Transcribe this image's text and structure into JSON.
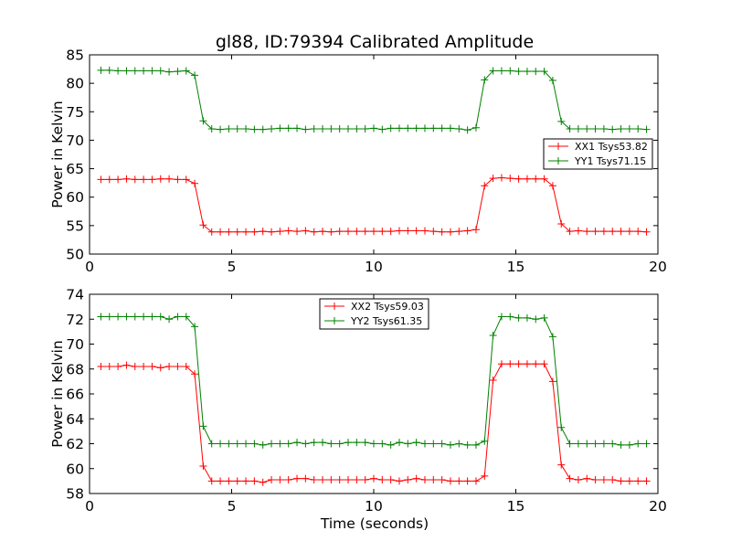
{
  "chart_data": {
    "title": "gl88, ID:79394 Calibrated Amplitude",
    "xlabel": "Time (seconds)",
    "panels": [
      {
        "type": "line",
        "ylabel": "Power in Kelvin",
        "xlim": [
          0,
          20
        ],
        "ylim": [
          50,
          85
        ],
        "xticks": [
          0,
          5,
          10,
          15,
          20
        ],
        "yticks": [
          50,
          55,
          60,
          65,
          70,
          75,
          80,
          85
        ],
        "legend_position": "center-right",
        "x": [
          0.4,
          0.7,
          1.0,
          1.3,
          1.6,
          1.9,
          2.2,
          2.5,
          2.8,
          3.1,
          3.4,
          3.7,
          4.0,
          4.3,
          4.6,
          4.9,
          5.2,
          5.5,
          5.8,
          6.1,
          6.4,
          6.7,
          7.0,
          7.3,
          7.6,
          7.9,
          8.2,
          8.5,
          8.8,
          9.1,
          9.4,
          9.7,
          10.0,
          10.3,
          10.6,
          10.9,
          11.2,
          11.5,
          11.8,
          12.1,
          12.4,
          12.7,
          13.0,
          13.3,
          13.6,
          13.9,
          14.2,
          14.5,
          14.8,
          15.1,
          15.4,
          15.7,
          16.0,
          16.3,
          16.6,
          16.9,
          17.2,
          17.5,
          17.8,
          18.1,
          18.4,
          18.7,
          19.0,
          19.3,
          19.6
        ],
        "series": [
          {
            "name": "XX1 Tsys53.82",
            "color": "#ff0000",
            "values": [
              63.1,
              63.1,
              63.1,
              63.2,
              63.1,
              63.1,
              63.1,
              63.2,
              63.2,
              63.1,
              63.1,
              62.4,
              55.1,
              53.9,
              53.9,
              53.9,
              53.9,
              53.9,
              53.9,
              54.0,
              53.9,
              54.0,
              54.1,
              54.0,
              54.1,
              53.9,
              54.0,
              53.9,
              54.0,
              54.0,
              54.0,
              54.0,
              54.0,
              54.0,
              54.0,
              54.1,
              54.1,
              54.1,
              54.1,
              54.0,
              53.9,
              53.9,
              54.0,
              54.1,
              54.3,
              62.0,
              63.3,
              63.4,
              63.3,
              63.2,
              63.2,
              63.2,
              63.2,
              62.0,
              55.3,
              54.0,
              54.1,
              54.0,
              54.0,
              54.0,
              54.0,
              54.0,
              54.0,
              54.0,
              53.9
            ]
          },
          {
            "name": "YY1 Tsys71.15",
            "color": "#008000",
            "values": [
              82.3,
              82.3,
              82.2,
              82.2,
              82.2,
              82.2,
              82.2,
              82.2,
              82.0,
              82.1,
              82.2,
              81.4,
              73.4,
              72.0,
              71.9,
              72.0,
              72.0,
              72.0,
              71.9,
              71.9,
              72.0,
              72.1,
              72.1,
              72.1,
              71.9,
              72.0,
              72.0,
              72.0,
              72.0,
              72.0,
              72.0,
              72.0,
              72.1,
              71.9,
              72.1,
              72.1,
              72.1,
              72.1,
              72.1,
              72.1,
              72.1,
              72.1,
              72.0,
              71.8,
              72.2,
              80.6,
              82.2,
              82.2,
              82.2,
              82.1,
              82.1,
              82.1,
              82.1,
              80.5,
              73.3,
              72.0,
              72.0,
              72.0,
              72.0,
              72.0,
              71.9,
              72.0,
              72.0,
              72.0,
              71.9
            ]
          }
        ]
      },
      {
        "type": "line",
        "ylabel": "Power in Kelvin",
        "xlim": [
          0,
          20
        ],
        "ylim": [
          58,
          74
        ],
        "xticks": [
          0,
          5,
          10,
          15,
          20
        ],
        "yticks": [
          58,
          60,
          62,
          64,
          66,
          68,
          70,
          72,
          74
        ],
        "legend_position": "upper-center",
        "x": [
          0.4,
          0.7,
          1.0,
          1.3,
          1.6,
          1.9,
          2.2,
          2.5,
          2.8,
          3.1,
          3.4,
          3.7,
          4.0,
          4.3,
          4.6,
          4.9,
          5.2,
          5.5,
          5.8,
          6.1,
          6.4,
          6.7,
          7.0,
          7.3,
          7.6,
          7.9,
          8.2,
          8.5,
          8.8,
          9.1,
          9.4,
          9.7,
          10.0,
          10.3,
          10.6,
          10.9,
          11.2,
          11.5,
          11.8,
          12.1,
          12.4,
          12.7,
          13.0,
          13.3,
          13.6,
          13.9,
          14.2,
          14.5,
          14.8,
          15.1,
          15.4,
          15.7,
          16.0,
          16.3,
          16.6,
          16.9,
          17.2,
          17.5,
          17.8,
          18.1,
          18.4,
          18.7,
          19.0,
          19.3,
          19.6
        ],
        "series": [
          {
            "name": "XX2 Tsys59.03",
            "color": "#ff0000",
            "values": [
              68.2,
              68.2,
              68.2,
              68.3,
              68.2,
              68.2,
              68.2,
              68.1,
              68.2,
              68.2,
              68.2,
              67.6,
              60.2,
              59.0,
              59.0,
              59.0,
              59.0,
              59.0,
              59.0,
              58.9,
              59.1,
              59.1,
              59.1,
              59.2,
              59.2,
              59.1,
              59.1,
              59.1,
              59.1,
              59.1,
              59.1,
              59.1,
              59.2,
              59.1,
              59.1,
              59.0,
              59.1,
              59.2,
              59.1,
              59.1,
              59.1,
              59.0,
              59.0,
              59.0,
              59.0,
              59.4,
              67.1,
              68.4,
              68.4,
              68.4,
              68.4,
              68.4,
              68.4,
              67.0,
              60.3,
              59.2,
              59.1,
              59.2,
              59.1,
              59.1,
              59.1,
              59.0,
              59.0,
              59.0,
              59.0
            ]
          },
          {
            "name": "YY2 Tsys61.35",
            "color": "#008000",
            "values": [
              72.2,
              72.2,
              72.2,
              72.2,
              72.2,
              72.2,
              72.2,
              72.2,
              72.0,
              72.2,
              72.2,
              71.4,
              63.4,
              62.0,
              62.0,
              62.0,
              62.0,
              62.0,
              62.0,
              61.9,
              62.0,
              62.0,
              62.0,
              62.1,
              62.0,
              62.1,
              62.1,
              62.0,
              62.0,
              62.1,
              62.1,
              62.1,
              62.0,
              62.0,
              61.9,
              62.1,
              62.0,
              62.1,
              62.0,
              62.0,
              62.0,
              61.9,
              62.0,
              61.9,
              61.9,
              62.2,
              70.7,
              72.2,
              72.2,
              72.1,
              72.1,
              72.0,
              72.1,
              70.6,
              63.3,
              62.0,
              62.0,
              62.0,
              62.0,
              62.0,
              62.0,
              61.9,
              61.9,
              62.0,
              62.0
            ]
          }
        ]
      }
    ]
  }
}
